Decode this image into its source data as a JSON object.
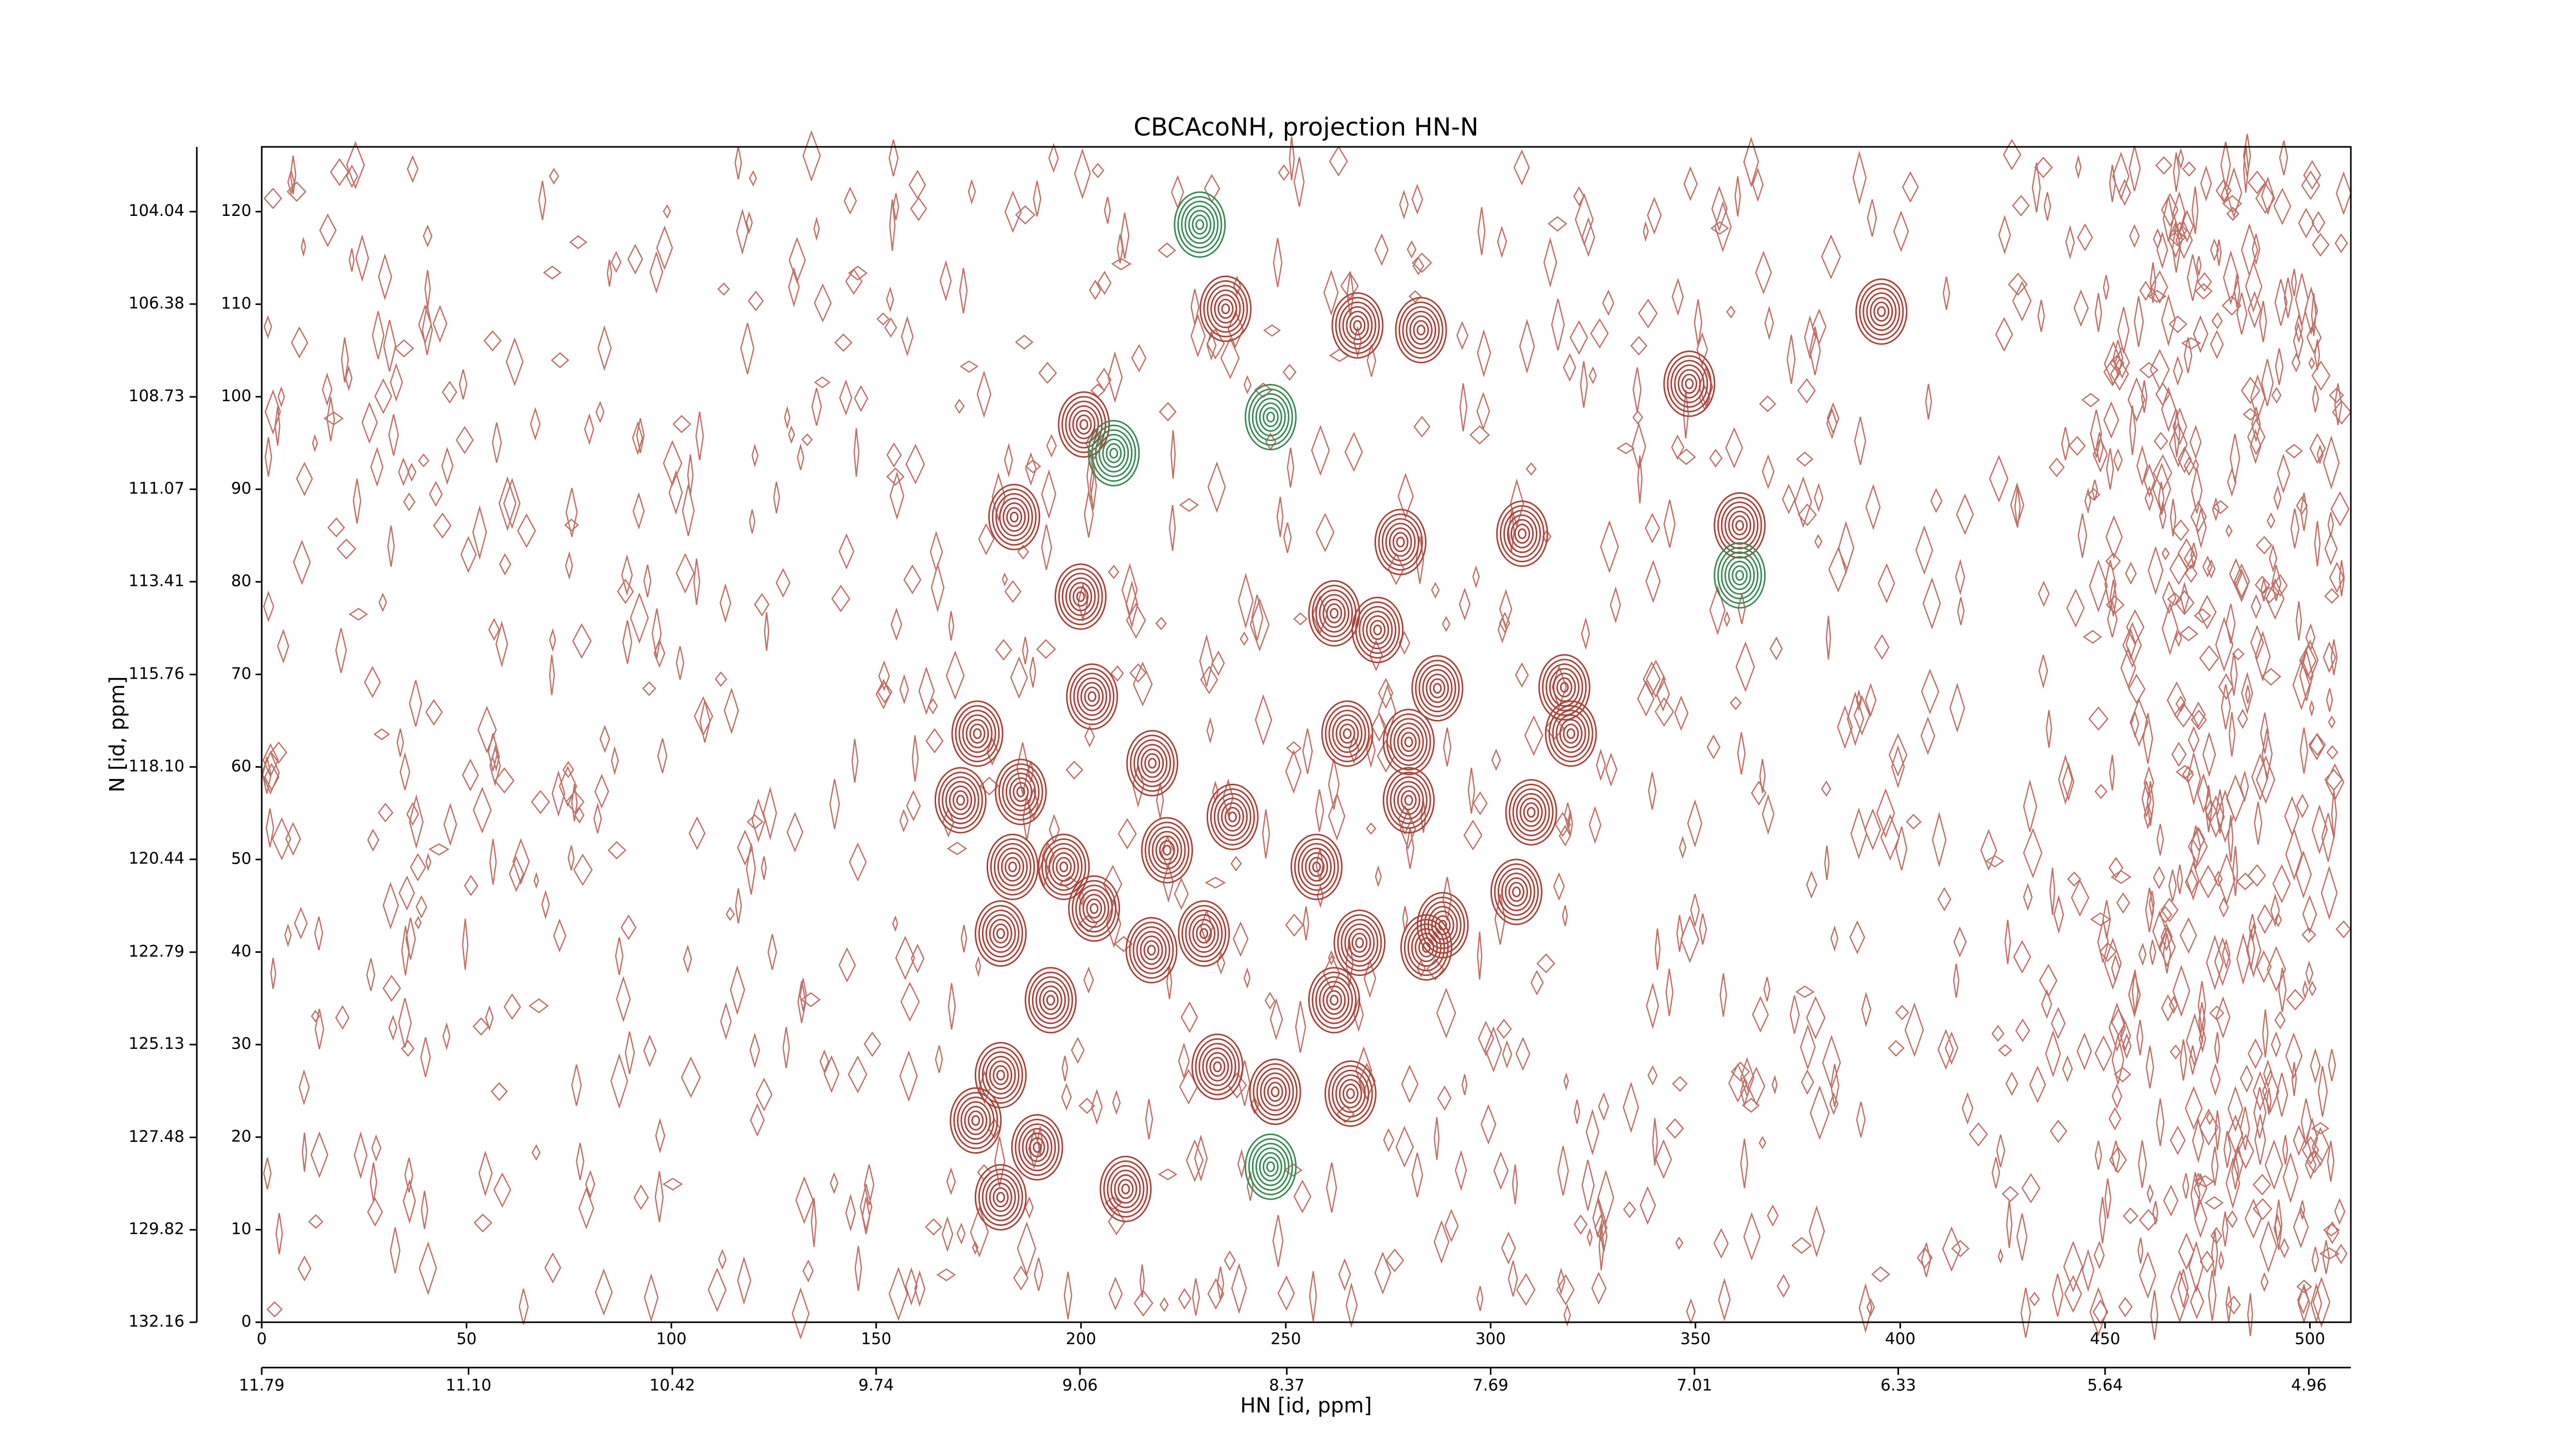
{
  "chart_data": {
    "type": "contour",
    "title": "CBCAcoNH, projection HN-N",
    "xlabel": "HN [id, ppm]",
    "ylabel": "N [id, ppm]",
    "xlim": [
      0,
      510
    ],
    "xticks": [
      0,
      50,
      100,
      150,
      200,
      250,
      300,
      350,
      400,
      450,
      500
    ],
    "ylim": [
      0,
      127
    ],
    "yticks": [
      0,
      10,
      20,
      30,
      40,
      50,
      60,
      70,
      80,
      90,
      100,
      110,
      120
    ],
    "x2lim": [
      11.79,
      4.82
    ],
    "x2ticks": [
      11.79,
      {
        "value": 11.1,
        "label": "11.10"
      },
      10.42,
      9.74,
      9.06,
      8.37,
      7.69,
      7.01,
      6.33,
      5.64,
      4.96
    ],
    "y2lim": [
      132.16,
      102.4
    ],
    "y2ticks": [
      132.16,
      129.82,
      127.48,
      125.13,
      122.79,
      120.44,
      {
        "value": 118.1,
        "label": "118.10"
      },
      115.76,
      113.41,
      111.07,
      108.73,
      106.38,
      104.04
    ],
    "series": [
      {
        "color": "#a8443a",
        "x": [
          200.7,
          183.7,
          199.9,
          202.7,
          174.7,
          170.6,
          185.3,
          217.4,
          183.3,
          195.8,
          180.4,
          203.2,
          221,
          237,
          230,
          217.2,
          192.6,
          180.4,
          174.3,
          189.3,
          180.4,
          210.9,
          233.3,
          261.8,
          261.8,
          272.4,
          287,
          280,
          265,
          280,
          309.9,
          318,
          319.6,
          306.3,
          288.3,
          284.3,
          268,
          257.5,
          265.8,
          247.4,
          348.5,
          395.4,
          307.7,
          360.8,
          283,
          267.5,
          278,
          235.3
        ],
        "y": [
          97,
          87,
          78.4,
          67.6,
          63.6,
          56.4,
          57.3,
          60.4,
          49.2,
          49.2,
          42,
          44.7,
          51,
          54.6,
          42,
          40.2,
          34.8,
          26.7,
          21.8,
          18.9,
          13.5,
          14.4,
          27.6,
          34.8,
          76.6,
          74.8,
          68.5,
          62.7,
          63.6,
          56.4,
          55.1,
          68.6,
          63.6,
          46.5,
          42.9,
          40.5,
          41,
          49.2,
          24.7,
          24.9,
          101.4,
          109.2,
          85.2,
          86.1,
          107.2,
          107.7,
          84.3,
          109.5
        ]
      },
      {
        "color": "#3a8a55",
        "x": [
          246.3,
          208,
          246.3,
          229,
          360.8
        ],
        "y": [
          97.8,
          93.9,
          16.8,
          118.6,
          80.7
        ]
      }
    ]
  }
}
